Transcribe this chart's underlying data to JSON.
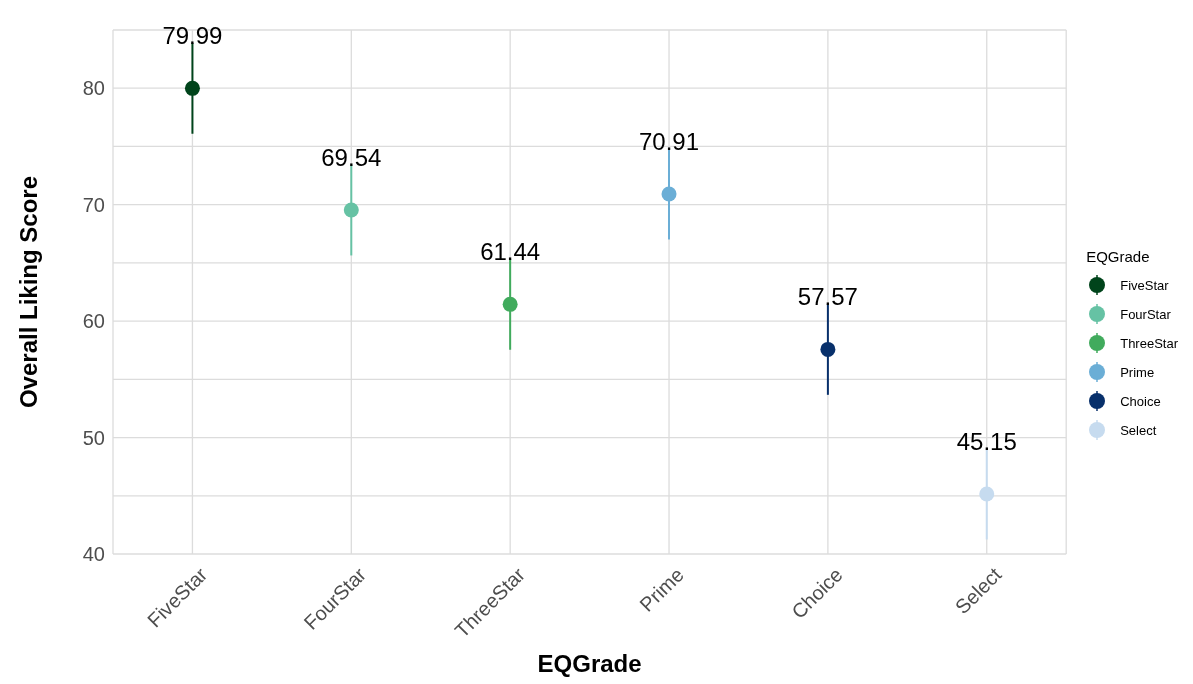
{
  "chart_data": {
    "type": "scatter",
    "xlabel": "EQGrade",
    "ylabel": "Overall Liking Score",
    "legend_title": "EQGrade",
    "categories": [
      "FiveStar",
      "FourStar",
      "ThreeStar",
      "Prime",
      "Choice",
      "Select"
    ],
    "series": [
      {
        "name": "FiveStar",
        "color": "#00441b",
        "values": [
          79.99,
          null,
          null,
          null,
          null,
          null
        ],
        "errors": [
          3.9,
          null,
          null,
          null,
          null,
          null
        ]
      },
      {
        "name": "FourStar",
        "color": "#66c2a4",
        "values": [
          null,
          69.54,
          null,
          null,
          null,
          null
        ],
        "errors": [
          null,
          3.9,
          null,
          null,
          null,
          null
        ]
      },
      {
        "name": "ThreeStar",
        "color": "#41ab5d",
        "values": [
          null,
          null,
          61.44,
          null,
          null,
          null
        ],
        "errors": [
          null,
          null,
          3.9,
          null,
          null,
          null
        ]
      },
      {
        "name": "Prime",
        "color": "#6baed6",
        "values": [
          null,
          null,
          null,
          70.91,
          null,
          null
        ],
        "errors": [
          null,
          null,
          null,
          3.9,
          null,
          null
        ]
      },
      {
        "name": "Choice",
        "color": "#08306b",
        "values": [
          null,
          null,
          null,
          null,
          57.57,
          null
        ],
        "errors": [
          null,
          null,
          null,
          null,
          3.9,
          null
        ]
      },
      {
        "name": "Select",
        "color": "#c6dbef",
        "values": [
          null,
          null,
          null,
          null,
          null,
          45.15
        ],
        "errors": [
          null,
          null,
          null,
          null,
          null,
          3.9
        ]
      }
    ],
    "ylim": [
      40,
      85
    ],
    "yticks": [
      40,
      {
        "value": 45,
        "label": null
      },
      50,
      {
        "value": 55,
        "label": null
      },
      60,
      {
        "value": 65,
        "label": null
      },
      70,
      {
        "value": 75,
        "label": null
      },
      80,
      {
        "value": 85,
        "label": null
      }
    ],
    "grid": true,
    "legend": "right",
    "marker": "circle",
    "data_labels": true
  }
}
